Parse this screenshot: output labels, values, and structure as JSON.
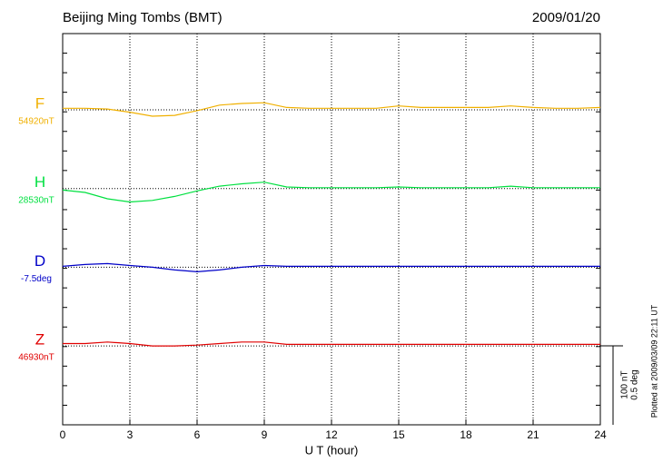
{
  "chart_data": {
    "type": "line",
    "title": "Beijing Ming Tombs (BMT)",
    "date": "2009/01/20",
    "x_label": "U T (hour)",
    "footnote": "Plotted at 2009/03/09 22:11 UT",
    "xlim": [
      0,
      24
    ],
    "xticks": [
      0,
      3,
      6,
      9,
      12,
      15,
      18,
      21,
      24
    ],
    "x": [
      0,
      1,
      2,
      3,
      4,
      5,
      6,
      7,
      8,
      9,
      10,
      11,
      12,
      13,
      14,
      15,
      16,
      17,
      18,
      19,
      20,
      21,
      22,
      23,
      24
    ],
    "scale_bar": [
      {
        "value": 100,
        "label": "100 nT"
      },
      {
        "value": 0.5,
        "label": "0.5 deg"
      }
    ],
    "series": [
      {
        "name": "F",
        "baseline_label": "54920nT",
        "color": "#f0b000",
        "values": [
          2,
          2,
          1,
          -3,
          -8,
          -7,
          -1,
          6,
          8,
          9,
          3,
          2,
          2,
          2,
          2,
          5,
          3,
          3,
          3,
          3,
          5,
          3,
          2,
          2,
          3
        ]
      },
      {
        "name": "H",
        "baseline_label": "28530nT",
        "color": "#00e040",
        "values": [
          -2,
          -5,
          -13,
          -17,
          -15,
          -10,
          -3,
          3,
          6,
          8,
          2,
          1,
          1,
          1,
          1,
          2,
          1,
          1,
          1,
          1,
          3,
          1,
          1,
          1,
          1
        ]
      },
      {
        "name": "D",
        "baseline_label": "-7.5deg",
        "color": "#0000c8",
        "values": [
          0.006,
          0.017,
          0.023,
          0.011,
          0,
          -0.017,
          -0.029,
          -0.017,
          0,
          0.011,
          0.006,
          0.006,
          0.006,
          0.006,
          0.006,
          0.006,
          0.006,
          0.006,
          0.006,
          0.006,
          0.006,
          0.006,
          0.006,
          0.006,
          0.006
        ]
      },
      {
        "name": "Z",
        "baseline_label": "46930nT",
        "color": "#e00000",
        "values": [
          3,
          3,
          5,
          3,
          0,
          0,
          1,
          3,
          5,
          5,
          2,
          2,
          2,
          2,
          2,
          2,
          2,
          2,
          2,
          2,
          2,
          2,
          2,
          2,
          2
        ]
      }
    ]
  }
}
